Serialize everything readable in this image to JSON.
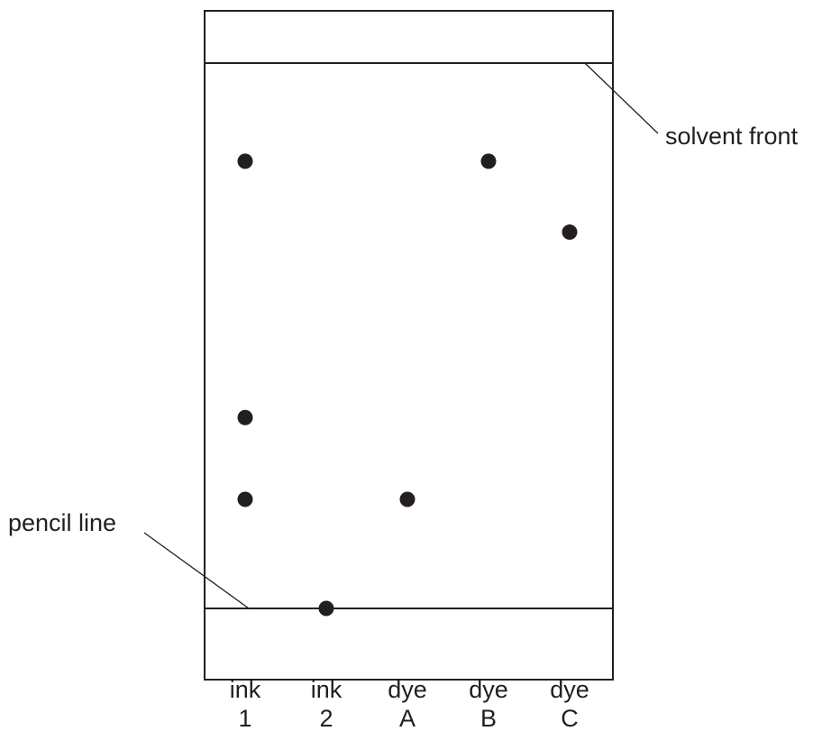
{
  "annotations": {
    "solvent_front": "solvent front",
    "pencil_line": "pencil line"
  },
  "lanes": [
    {
      "top": "ink",
      "bottom": "1",
      "spots": [
        0.82,
        0.35,
        0.2
      ]
    },
    {
      "top": "ink",
      "bottom": "2",
      "spots": [
        0.0
      ]
    },
    {
      "top": "dye",
      "bottom": "A",
      "spots": [
        0.2
      ]
    },
    {
      "top": "dye",
      "bottom": "B",
      "spots": [
        0.82
      ]
    },
    {
      "top": "dye",
      "bottom": "C",
      "spots": [
        0.69
      ]
    }
  ],
  "colors": {
    "line": "#231f20",
    "spot": "#231f20",
    "background": "#ffffff"
  }
}
